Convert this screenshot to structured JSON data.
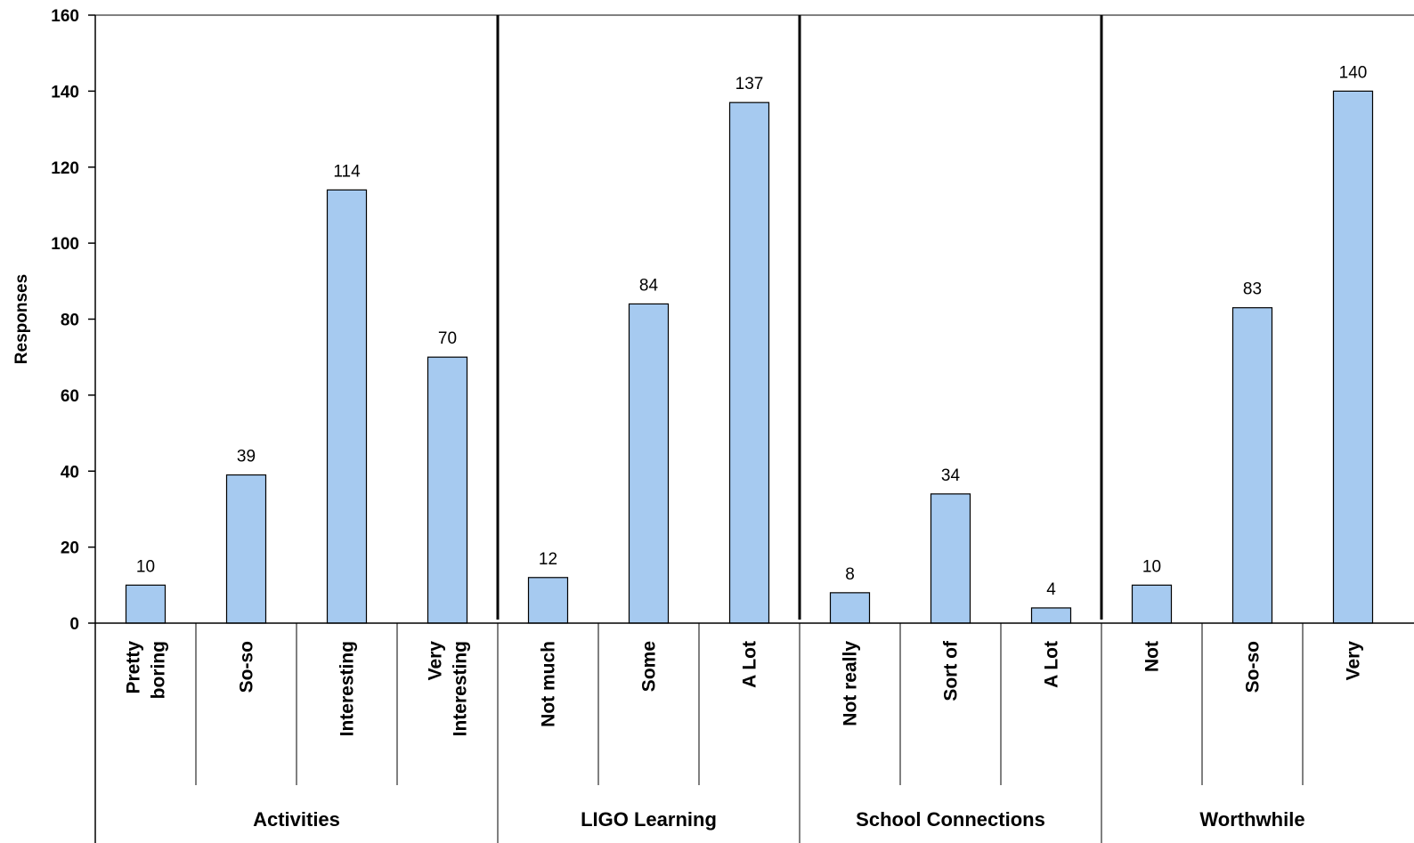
{
  "chart_data": {
    "type": "bar",
    "ylabel": "Responses",
    "ylim": [
      0,
      160
    ],
    "yticks": [
      0,
      20,
      40,
      60,
      80,
      100,
      120,
      140,
      160
    ],
    "grid": false,
    "legend": "none",
    "colors": {
      "bar": "#a6caf0",
      "bar_stroke": "#000000"
    },
    "groups": [
      {
        "name": "Activities",
        "categories": [
          "Pretty boring",
          "So-so",
          "Interesting",
          "Very Interesting"
        ],
        "values": [
          10,
          39,
          114,
          70
        ]
      },
      {
        "name": "LIGO Learning",
        "categories": [
          "Not much",
          "Some",
          "A Lot"
        ],
        "values": [
          12,
          84,
          137
        ]
      },
      {
        "name": "School Connections",
        "categories": [
          "Not really",
          "Sort of",
          "A Lot"
        ],
        "values": [
          8,
          34,
          4
        ]
      },
      {
        "name": "Worthwhile",
        "categories": [
          "Not",
          "So-so",
          "Very"
        ],
        "values": [
          10,
          83,
          140
        ]
      }
    ]
  }
}
